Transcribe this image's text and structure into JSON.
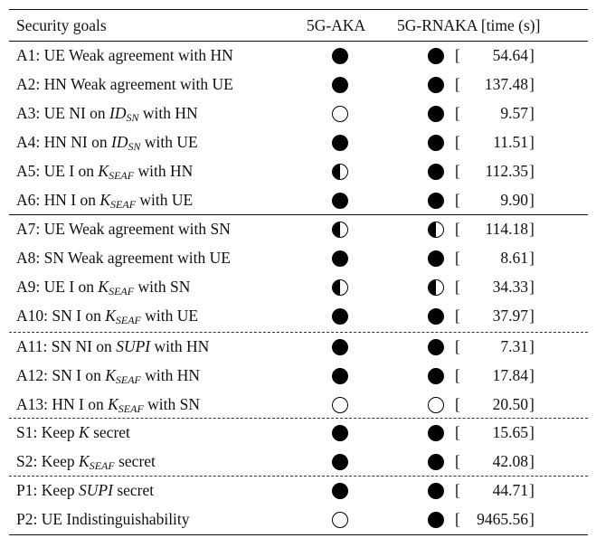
{
  "header": {
    "goal_col": "Security goals",
    "aka_col": "5G-AKA",
    "rnaka_col": "5G-RNAKA [time (s)]"
  },
  "legend_symbols": {
    "full": "filled-circle",
    "half": "half-filled-circle",
    "none": "empty-circle"
  },
  "rows": [
    {
      "id": "A1",
      "segs": [
        "A1: UE Weak agreement with HN"
      ],
      "aka": "full",
      "rnaka": "full",
      "time": "54.64"
    },
    {
      "id": "A2",
      "segs": [
        "A2: HN Weak agreement with UE"
      ],
      "aka": "full",
      "rnaka": "full",
      "time": "137.48"
    },
    {
      "id": "A3",
      "segs": [
        "A3: UE NI on ",
        "ID",
        "SN",
        " with HN"
      ],
      "aka": "none",
      "rnaka": "full",
      "time": "9.57"
    },
    {
      "id": "A4",
      "segs": [
        "A4: HN NI on ",
        "ID",
        "SN",
        " with UE"
      ],
      "aka": "full",
      "rnaka": "full",
      "time": "11.51"
    },
    {
      "id": "A5",
      "segs": [
        "A5: UE I on ",
        "K",
        "SEAF",
        " with HN"
      ],
      "aka": "half",
      "rnaka": "full",
      "time": "112.35"
    },
    {
      "id": "A6",
      "segs": [
        "A6: HN I on ",
        "K",
        "SEAF",
        " with UE"
      ],
      "aka": "full",
      "rnaka": "full",
      "time": "9.90"
    },
    {
      "id": "A7",
      "segs": [
        "A7: UE Weak agreement with SN"
      ],
      "aka": "half",
      "rnaka": "half",
      "time": "114.18"
    },
    {
      "id": "A8",
      "segs": [
        "A8: SN Weak agreement with UE"
      ],
      "aka": "full",
      "rnaka": "full",
      "time": "8.61"
    },
    {
      "id": "A9",
      "segs": [
        "A9: UE I on ",
        "K",
        "SEAF",
        " with SN"
      ],
      "aka": "half",
      "rnaka": "half",
      "time": "34.33"
    },
    {
      "id": "A10",
      "segs": [
        "A10: SN I on ",
        "K",
        "SEAF",
        " with UE"
      ],
      "aka": "full",
      "rnaka": "full",
      "time": "37.97"
    },
    {
      "id": "A11",
      "segs": [
        "A11: SN NI on ",
        "SUPI",
        "",
        " with HN"
      ],
      "aka": "full",
      "rnaka": "full",
      "time": "7.31"
    },
    {
      "id": "A12",
      "segs": [
        "A12: SN I on ",
        "K",
        "SEAF",
        " with HN"
      ],
      "aka": "full",
      "rnaka": "full",
      "time": "17.84"
    },
    {
      "id": "A13",
      "segs": [
        "A13: HN I on ",
        "K",
        "SEAF",
        " with SN"
      ],
      "aka": "none",
      "rnaka": "none",
      "time": "20.50"
    },
    {
      "id": "S1",
      "segs": [
        "S1: Keep ",
        "K",
        "",
        " secret"
      ],
      "aka": "full",
      "rnaka": "full",
      "time": "15.65"
    },
    {
      "id": "S2",
      "segs": [
        "S2: Keep ",
        "K",
        "SEAF",
        " secret"
      ],
      "aka": "full",
      "rnaka": "full",
      "time": "42.08"
    },
    {
      "id": "P1",
      "segs": [
        "P1: Keep ",
        "SUPI",
        "",
        " secret"
      ],
      "aka": "full",
      "rnaka": "full",
      "time": "44.71"
    },
    {
      "id": "P2",
      "segs": [
        "P2: UE Indistinguishability"
      ],
      "aka": "none",
      "rnaka": "full",
      "time": "9465.56"
    }
  ]
}
